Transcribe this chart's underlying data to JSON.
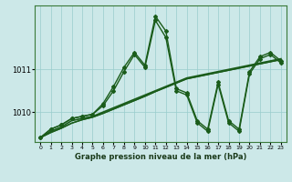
{
  "title": "Graphe pression niveau de la mer (hPa)",
  "bg_color": "#cce8e8",
  "grid_color": "#99cccc",
  "line_color": "#1a5c1a",
  "x_ticks": [
    0,
    1,
    2,
    3,
    4,
    5,
    6,
    7,
    8,
    9,
    10,
    11,
    12,
    13,
    14,
    15,
    16,
    17,
    18,
    19,
    20,
    21,
    22,
    23
  ],
  "y_ticks": [
    1010,
    1011
  ],
  "ylim": [
    1009.3,
    1012.5
  ],
  "xlim": [
    -0.5,
    23.5
  ],
  "series": [
    [
      1009.4,
      1009.55,
      1009.65,
      1009.8,
      1009.85,
      1009.9,
      1010.0,
      1010.1,
      1010.2,
      1010.3,
      1010.4,
      1010.5,
      1010.6,
      1010.7,
      1010.8,
      1010.85,
      1010.9,
      1010.95,
      1011.0,
      1011.05,
      1011.1,
      1011.15,
      1011.2,
      1011.25
    ],
    [
      1009.4,
      1009.52,
      1009.62,
      1009.74,
      1009.82,
      1009.88,
      1009.97,
      1010.07,
      1010.17,
      1010.27,
      1010.37,
      1010.48,
      1010.58,
      1010.68,
      1010.78,
      1010.83,
      1010.88,
      1010.93,
      1010.98,
      1011.03,
      1011.08,
      1011.13,
      1011.18,
      1011.23
    ],
    [
      1009.4,
      1009.52,
      1009.62,
      1009.74,
      1009.82,
      1009.88,
      1009.97,
      1010.07,
      1010.17,
      1010.27,
      1010.37,
      1010.48,
      1010.58,
      1010.68,
      1010.78,
      1010.83,
      1010.88,
      1010.93,
      1010.98,
      1011.03,
      1011.08,
      1011.13,
      1011.18,
      1011.23
    ],
    [
      1009.4,
      1009.6,
      1009.7,
      1009.85,
      1009.9,
      1009.95,
      1010.2,
      1010.6,
      1011.05,
      1011.4,
      1011.1,
      1012.25,
      1011.9,
      1010.55,
      1010.45,
      1009.8,
      1009.6,
      1010.7,
      1009.8,
      1009.6,
      1010.95,
      1011.3,
      1011.4,
      1011.2
    ],
    [
      1009.4,
      1009.6,
      1009.7,
      1009.85,
      1009.9,
      1009.95,
      1010.15,
      1010.5,
      1010.95,
      1011.35,
      1011.05,
      1012.15,
      1011.75,
      1010.5,
      1010.4,
      1009.75,
      1009.55,
      1010.65,
      1009.75,
      1009.55,
      1010.9,
      1011.25,
      1011.35,
      1011.15
    ]
  ],
  "series_styles": [
    {
      "lw": 1.2,
      "marker": "None",
      "ms": 0,
      "ls": "-"
    },
    {
      "lw": 1.0,
      "marker": "None",
      "ms": 0,
      "ls": "-"
    },
    {
      "lw": 1.0,
      "marker": "None",
      "ms": 0,
      "ls": "-"
    },
    {
      "lw": 1.0,
      "marker": "D",
      "ms": 2.0,
      "ls": "-"
    },
    {
      "lw": 1.0,
      "marker": "D",
      "ms": 2.0,
      "ls": "-"
    }
  ]
}
